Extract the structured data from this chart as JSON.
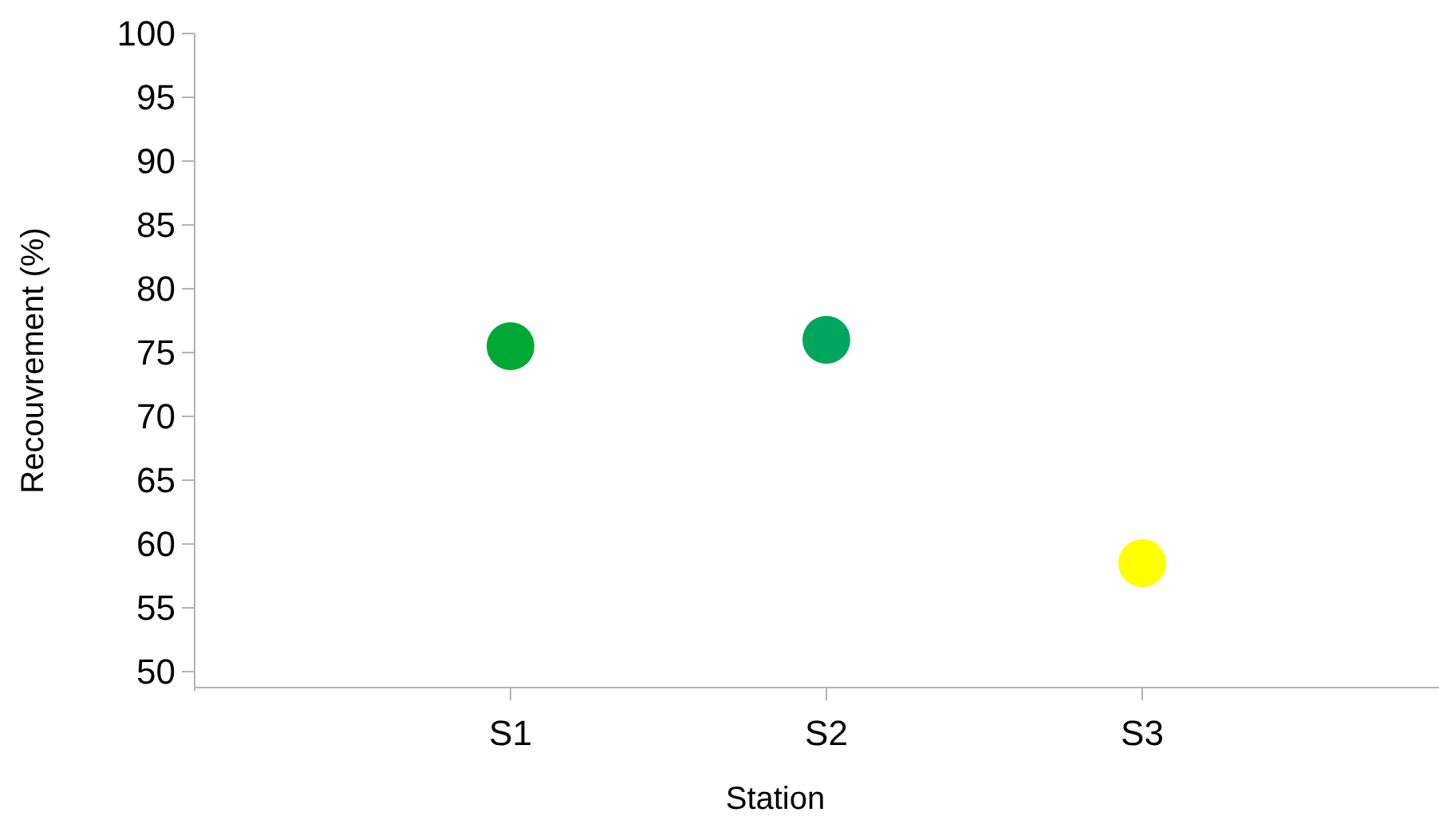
{
  "chart_data": {
    "type": "scatter",
    "xlabel": "Station",
    "ylabel": "Recouvrement (%)",
    "categories": [
      "S1",
      "S2",
      "S3"
    ],
    "values": [
      75.5,
      76,
      58.5
    ],
    "colors": [
      "#00a933",
      "#00a65d",
      "#ffff00"
    ],
    "ylim": [
      48.75,
      100
    ],
    "yticks": [
      50,
      55,
      60,
      65,
      70,
      75,
      80,
      85,
      90,
      95,
      100
    ],
    "marker": "circle",
    "grid": false
  }
}
